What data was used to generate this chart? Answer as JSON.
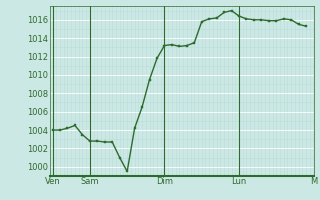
{
  "x_values": [
    0,
    0.5,
    1,
    1.5,
    2,
    2.5,
    3,
    3.5,
    4,
    4.5,
    5,
    5.5,
    6,
    6.5,
    7,
    7.5,
    8,
    8.5,
    9,
    9.5,
    10,
    10.5,
    11,
    11.5,
    12,
    12.5,
    13,
    13.5,
    14,
    14.5,
    15,
    15.5,
    16,
    16.5,
    17
  ],
  "y_values": [
    1004,
    1004,
    1004.2,
    1004.5,
    1003.5,
    1002.8,
    1002.8,
    1002.7,
    1002.7,
    1001.0,
    999.5,
    1004.2,
    1006.5,
    1009.5,
    1011.8,
    1013.2,
    1013.3,
    1013.1,
    1013.2,
    1013.5,
    1015.8,
    1016.1,
    1016.2,
    1016.8,
    1017.0,
    1016.4,
    1016.1,
    1016.0,
    1016.0,
    1015.9,
    1015.9,
    1016.1,
    1016.0,
    1015.5,
    1015.3
  ],
  "ylim": [
    999,
    1017.5
  ],
  "xlim": [
    -0.2,
    17.5
  ],
  "yticks": [
    1000,
    1002,
    1004,
    1006,
    1008,
    1010,
    1012,
    1014,
    1016
  ],
  "day_lines_x": [
    0,
    2.5,
    7.5,
    12.5,
    17.5
  ],
  "day_labels": [
    "Ven",
    "Sam",
    "Dim",
    "Lun",
    "M"
  ],
  "line_color": "#2d6a2d",
  "marker_color": "#2d6a2d",
  "bg_color": "#cce8e4",
  "grid_major_color": "#ffffff",
  "grid_minor_color": "#b8dcd8",
  "border_color": "#2d6a2d",
  "tick_label_color": "#2d6a2d",
  "tick_fontsize": 6.0,
  "line_width": 1.0,
  "marker_size": 2.0
}
